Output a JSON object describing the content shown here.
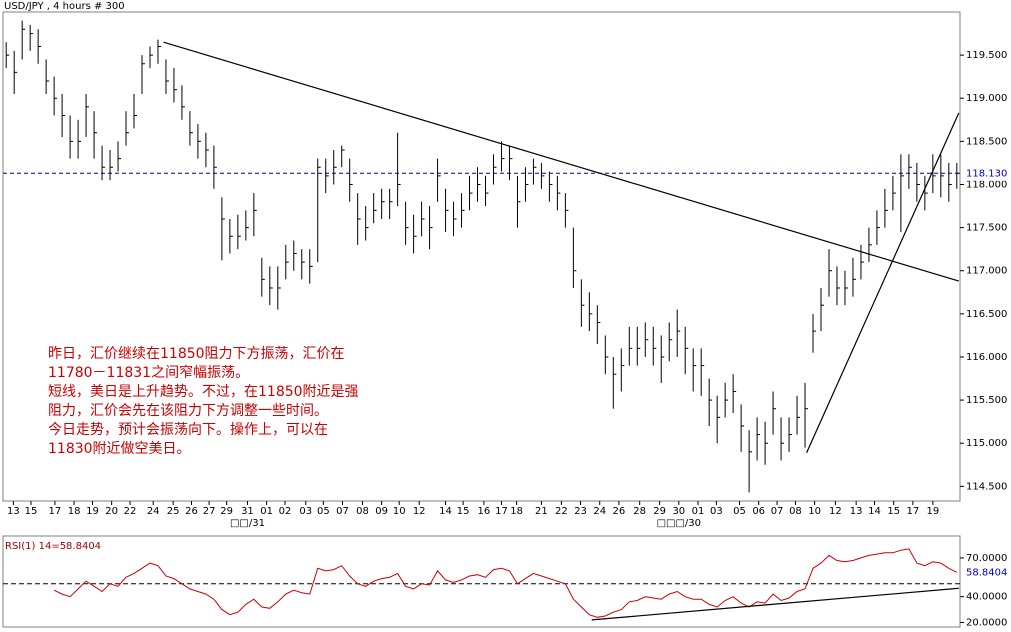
{
  "chart_data": [
    {
      "type": "ohlc",
      "title": "USD/JPY , 4 hours # 300",
      "color": "#000000",
      "high": [
        119.65,
        119.55,
        119.9,
        119.85,
        119.8,
        119.45,
        119.25,
        119.05,
        118.8,
        118.75,
        119.05,
        118.85,
        118.45,
        118.4,
        118.5,
        118.85,
        119.05,
        119.5,
        119.6,
        119.68,
        119.45,
        119.35,
        119.15,
        118.85,
        118.7,
        118.6,
        118.45,
        117.85,
        117.6,
        117.65,
        117.7,
        117.9,
        117.15,
        117.05,
        117.05,
        117.3,
        117.35,
        117.25,
        117.25,
        118.3,
        118.3,
        118.4,
        118.45,
        118.3,
        117.9,
        117.75,
        117.9,
        117.95,
        117.95,
        118.6,
        117.8,
        117.65,
        117.8,
        117.75,
        118.3,
        117.95,
        117.8,
        117.9,
        118.1,
        118.2,
        118.1,
        118.35,
        118.5,
        118.45,
        118.1,
        118.2,
        118.3,
        118.25,
        118.15,
        118.1,
        117.9,
        117.5,
        116.9,
        116.75,
        116.6,
        116.25,
        116.0,
        116.1,
        116.35,
        116.35,
        116.4,
        116.35,
        116.25,
        116.4,
        116.55,
        116.35,
        116.1,
        116.1,
        115.75,
        115.55,
        115.7,
        115.8,
        115.45,
        115.15,
        115.3,
        115.25,
        115.6,
        115.3,
        115.3,
        115.55,
        115.7,
        116.5,
        116.8,
        117.25,
        117.05,
        117.0,
        117.15,
        117.3,
        117.5,
        117.7,
        117.95,
        118.1,
        118.35,
        118.35,
        118.25,
        118.1,
        118.35,
        118.35,
        118.25,
        118.25
      ],
      "low": [
        119.35,
        119.05,
        119.45,
        119.55,
        119.4,
        119.05,
        118.8,
        118.55,
        118.3,
        118.3,
        118.55,
        118.3,
        118.05,
        118.05,
        118.15,
        118.45,
        118.65,
        119.05,
        119.35,
        119.4,
        119.05,
        118.95,
        118.75,
        118.45,
        118.3,
        118.2,
        117.95,
        117.12,
        117.2,
        117.25,
        117.35,
        117.4,
        116.7,
        116.6,
        116.55,
        116.9,
        117.0,
        116.9,
        116.85,
        117.1,
        117.9,
        118.0,
        118.2,
        117.8,
        117.3,
        117.35,
        117.55,
        117.6,
        117.6,
        117.75,
        117.3,
        117.2,
        117.4,
        117.25,
        117.8,
        117.45,
        117.4,
        117.5,
        117.7,
        117.8,
        117.75,
        118.0,
        118.15,
        118.05,
        117.5,
        117.8,
        118.0,
        117.95,
        117.8,
        117.7,
        117.5,
        116.8,
        116.35,
        116.3,
        116.15,
        115.8,
        115.4,
        115.6,
        115.9,
        115.9,
        116.0,
        115.9,
        115.7,
        115.95,
        116.0,
        115.8,
        115.6,
        115.55,
        115.2,
        115.0,
        115.3,
        115.35,
        114.9,
        114.43,
        114.8,
        114.75,
        115.1,
        114.8,
        114.9,
        115.1,
        114.95,
        116.05,
        116.3,
        116.7,
        116.6,
        116.6,
        116.7,
        116.9,
        117.1,
        117.3,
        117.5,
        117.7,
        117.45,
        117.95,
        117.8,
        117.7,
        117.9,
        117.85,
        117.8,
        117.95
      ],
      "close": [
        119.5,
        119.3,
        119.8,
        119.75,
        119.6,
        119.2,
        119.0,
        118.8,
        118.5,
        118.5,
        118.9,
        118.6,
        118.2,
        118.2,
        118.3,
        118.6,
        118.8,
        119.4,
        119.5,
        119.6,
        119.2,
        119.1,
        118.9,
        118.6,
        118.5,
        118.4,
        118.2,
        117.6,
        117.4,
        117.4,
        117.5,
        117.7,
        116.9,
        116.8,
        116.8,
        117.1,
        117.2,
        117.1,
        117.05,
        118.2,
        118.1,
        118.2,
        118.4,
        118.0,
        117.6,
        117.5,
        117.7,
        117.8,
        117.8,
        118.0,
        117.5,
        117.4,
        117.6,
        117.5,
        118.1,
        117.7,
        117.6,
        117.7,
        117.9,
        118.0,
        117.9,
        118.2,
        118.3,
        118.3,
        117.8,
        118.0,
        118.2,
        118.1,
        118.0,
        117.9,
        117.7,
        117.0,
        116.6,
        116.5,
        116.4,
        116.0,
        115.8,
        115.9,
        116.1,
        116.1,
        116.2,
        116.1,
        116.0,
        116.2,
        116.3,
        116.1,
        115.9,
        115.9,
        115.5,
        115.3,
        115.5,
        115.6,
        115.2,
        114.9,
        115.1,
        115.0,
        115.4,
        115.0,
        115.1,
        115.3,
        115.4,
        116.3,
        116.6,
        117.0,
        116.8,
        116.8,
        116.9,
        117.1,
        117.3,
        117.5,
        117.7,
        117.9,
        118.1,
        118.2,
        118.0,
        117.9,
        118.1,
        118.1,
        118.0,
        118.13
      ],
      "xlim": [
        -0.4,
        119.4
      ],
      "ylim": [
        114.33,
        120.0
      ],
      "yticks": [
        {
          "value": 119.5,
          "label": "119.500"
        },
        {
          "value": 119.0,
          "label": "119.000"
        },
        {
          "value": 118.5,
          "label": "118.500"
        },
        {
          "value": 118.0,
          "label": "118.000"
        },
        {
          "value": 117.5,
          "label": "117.500"
        },
        {
          "value": 117.0,
          "label": "117.000"
        },
        {
          "value": 116.5,
          "label": "116.500"
        },
        {
          "value": 116.0,
          "label": "116.000"
        },
        {
          "value": 115.5,
          "label": "115.500"
        },
        {
          "value": 115.0,
          "label": "115.000"
        },
        {
          "value": 114.5,
          "label": "114.500"
        }
      ],
      "xticks": [
        {
          "value": 0.9,
          "label": "13"
        },
        {
          "value": 3.1,
          "label": "15"
        },
        {
          "value": 6.1,
          "label": "17"
        },
        {
          "value": 8.5,
          "label": "18"
        },
        {
          "value": 10.8,
          "label": "19"
        },
        {
          "value": 13.2,
          "label": "20"
        },
        {
          "value": 15.5,
          "label": "22"
        },
        {
          "value": 18.4,
          "label": "24"
        },
        {
          "value": 20.9,
          "label": "25"
        },
        {
          "value": 23.2,
          "label": "26"
        },
        {
          "value": 25.4,
          "label": "27"
        },
        {
          "value": 27.6,
          "label": "29"
        },
        {
          "value": 30.2,
          "label": "31"
        },
        {
          "value": 32.6,
          "label": "01"
        },
        {
          "value": 34.9,
          "label": "02"
        },
        {
          "value": 37.5,
          "label": "03"
        },
        {
          "value": 39.7,
          "label": "05"
        },
        {
          "value": 42.1,
          "label": "07"
        },
        {
          "value": 44.6,
          "label": "08"
        },
        {
          "value": 47.0,
          "label": "09"
        },
        {
          "value": 49.2,
          "label": "10"
        },
        {
          "value": 51.7,
          "label": "12"
        },
        {
          "value": 55.0,
          "label": "14"
        },
        {
          "value": 57.2,
          "label": "15"
        },
        {
          "value": 59.8,
          "label": "16"
        },
        {
          "value": 62.0,
          "label": "17"
        },
        {
          "value": 63.9,
          "label": "18"
        },
        {
          "value": 67.0,
          "label": "21"
        },
        {
          "value": 69.5,
          "label": "22"
        },
        {
          "value": 71.9,
          "label": "23"
        },
        {
          "value": 74.3,
          "label": "24"
        },
        {
          "value": 76.7,
          "label": "26"
        },
        {
          "value": 79.3,
          "label": "28"
        },
        {
          "value": 81.8,
          "label": "29"
        },
        {
          "value": 84.2,
          "label": "30"
        },
        {
          "value": 86.6,
          "label": "01"
        },
        {
          "value": 88.9,
          "label": "03"
        },
        {
          "value": 91.8,
          "label": "05"
        },
        {
          "value": 94.2,
          "label": "06"
        },
        {
          "value": 96.5,
          "label": "07"
        },
        {
          "value": 98.8,
          "label": "08"
        },
        {
          "value": 101.2,
          "label": "10"
        },
        {
          "value": 103.8,
          "label": "12"
        },
        {
          "value": 106.4,
          "label": "13"
        },
        {
          "value": 108.7,
          "label": "14"
        },
        {
          "value": 111.1,
          "label": "15"
        },
        {
          "value": 113.5,
          "label": "17"
        },
        {
          "value": 116.0,
          "label": "19"
        }
      ],
      "x_group_labels": [
        {
          "value": 30.2,
          "label": "□□/31"
        },
        {
          "value": 84.2,
          "label": "□□□/30"
        }
      ],
      "current": {
        "value": 118.13,
        "label": "118.130"
      },
      "trendlines": [
        {
          "x": [
            19.7,
            119.25
          ],
          "y": [
            119.65,
            116.88
          ]
        },
        {
          "x": [
            100.2,
            119.25
          ],
          "y": [
            114.89,
            118.83
          ]
        }
      ],
      "annotations": [
        "昨日，汇价继续在11850阻力下方振荡，汇价在",
        "11780－11831之间窄幅振荡。",
        "短线，美日是上升趋势。不过，在11850附近是强",
        "阻力，汇价会先在该阻力下方调整一些时间。",
        "今日走势，预计会振荡向下。操作上，可以在",
        "11830附近做空美日。"
      ]
    },
    {
      "type": "line",
      "title": "RSI(1) 14=58.8404",
      "color": "#cc0000",
      "values": [
        null,
        null,
        null,
        null,
        null,
        null,
        45,
        42,
        40,
        46,
        52,
        48,
        44,
        50,
        48,
        55,
        58,
        62,
        66,
        64,
        56,
        54,
        50,
        46,
        44,
        42,
        38,
        30,
        26,
        28,
        34,
        38,
        32,
        31,
        36,
        42,
        45,
        43,
        42,
        62,
        60,
        61,
        64,
        56,
        50,
        48,
        52,
        54,
        55,
        58,
        48,
        46,
        50,
        49,
        60,
        53,
        51,
        53,
        56,
        57,
        55,
        61,
        62,
        60,
        50,
        54,
        58,
        56,
        54,
        52,
        50,
        38,
        32,
        26,
        24,
        25,
        28,
        30,
        36,
        37,
        40,
        39,
        38,
        42,
        44,
        40,
        38,
        38,
        34,
        32,
        37,
        40,
        35,
        32,
        36,
        35,
        42,
        37,
        39,
        44,
        46,
        62,
        66,
        72,
        68,
        67,
        68,
        70,
        72,
        73,
        74,
        74,
        76,
        77,
        66,
        64,
        67,
        66,
        62,
        58.8404
      ],
      "xlim": [
        -0.4,
        119.4
      ],
      "ylim": [
        16.5,
        87
      ],
      "yticks": [
        {
          "value": 70,
          "label": "70.0000"
        },
        {
          "value": 40,
          "label": "40.0000"
        },
        {
          "value": 20,
          "label": "20.0000"
        }
      ],
      "reference_line": 50,
      "trendlines": [
        {
          "x": [
            73.3,
            119.25
          ],
          "y": [
            22,
            46.5
          ]
        }
      ]
    }
  ]
}
